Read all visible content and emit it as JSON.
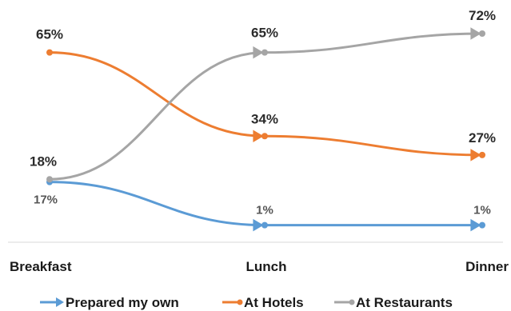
{
  "chart_data": {
    "type": "line",
    "categories": [
      "Breakfast",
      "Lunch",
      "Dinner"
    ],
    "series": [
      {
        "name": "Prepared my own",
        "values": [
          17,
          1,
          1
        ],
        "labels": [
          "17%",
          "1%",
          "1%"
        ],
        "color": "#5b9bd5"
      },
      {
        "name": "At Hotels",
        "values": [
          65,
          34,
          27
        ],
        "labels": [
          "65%",
          "34%",
          "27%"
        ],
        "color": "#ed7d31"
      },
      {
        "name": "At Restaurants",
        "values": [
          18,
          65,
          72
        ],
        "labels": [
          "18%",
          "65%",
          "72%"
        ],
        "color": "#a5a5a5"
      }
    ],
    "ylim": [
      0,
      72
    ],
    "grid": false,
    "legend_position": "bottom",
    "line_style": "smoothed with arrowheads"
  }
}
